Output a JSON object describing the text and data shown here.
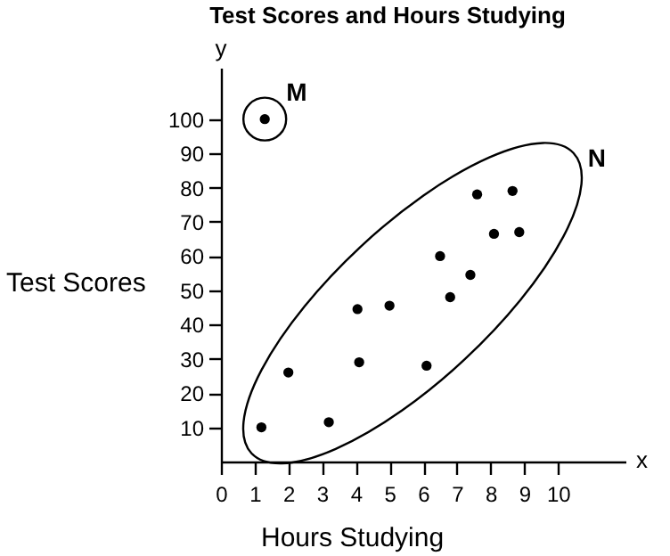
{
  "chart_data": {
    "type": "scatter",
    "title": "Test Scores and Hours Studying",
    "xlabel": "Hours Studying",
    "ylabel": "Test Scores",
    "x": [
      1.3,
      1.2,
      2.0,
      3.2,
      4.05,
      4.1,
      5.0,
      6.1,
      6.5,
      6.8,
      7.4,
      7.6,
      8.1,
      8.65,
      8.85
    ],
    "values": [
      100,
      10,
      26,
      11.5,
      44.5,
      29,
      45.5,
      28,
      60,
      48,
      54.5,
      78,
      66.5,
      79,
      67
    ],
    "color": "#000000",
    "marker": "circle",
    "grid": false,
    "xlim": [
      0,
      12
    ],
    "ylim": [
      0,
      115
    ],
    "xticks": [
      0,
      1,
      2,
      3,
      4,
      5,
      6,
      7,
      8,
      9,
      10
    ],
    "yticks": [
      10,
      20,
      30,
      40,
      50,
      60,
      70,
      80,
      90,
      100
    ],
    "annotations": [
      "M",
      "N",
      "x",
      "y"
    ]
  }
}
